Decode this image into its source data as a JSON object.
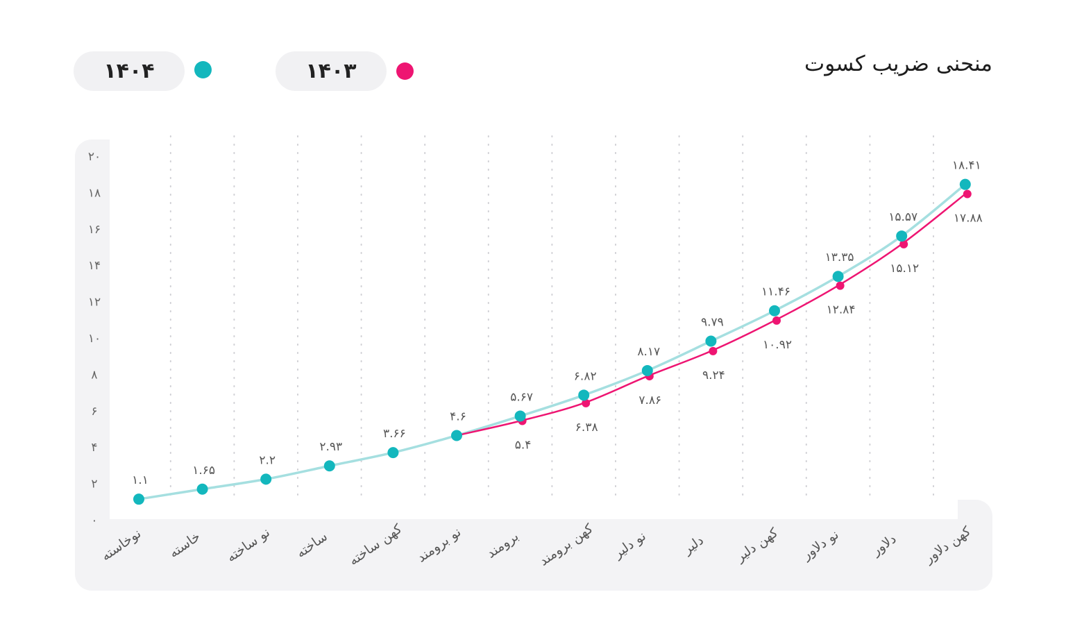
{
  "title": "منحنی ضریب کسوت",
  "colors": {
    "s1403": "#ee1572",
    "s1404": "#13b7bd",
    "line1404": "#a5dfe0"
  },
  "legend": [
    {
      "name": "۱۴۰۳",
      "color": "#ee1572"
    },
    {
      "name": "۱۴۰۴",
      "color": "#13b7bd"
    }
  ],
  "chart_data": {
    "type": "line",
    "title": "منحنی ضریب کسوت",
    "xlabel": "",
    "ylabel": "",
    "ylim": [
      0,
      20
    ],
    "grid": "vertical-dotted",
    "legend_position": "top-left",
    "categories": [
      "نوخاسته",
      "خاسته",
      "نو ساخته",
      "ساخته",
      "کهن ساخته",
      "نو برومند",
      "برومند",
      "کهن برومند",
      "نو دلیر",
      "دلیر",
      "کهن دلیر",
      "نو دلاور",
      "دلاور",
      "کهن دلاور"
    ],
    "y_ticks": [
      {
        "value": 0,
        "label": "۰"
      },
      {
        "value": 2,
        "label": "۲"
      },
      {
        "value": 4,
        "label": "۴"
      },
      {
        "value": 6,
        "label": "۶"
      },
      {
        "value": 8,
        "label": "۸"
      },
      {
        "value": 10,
        "label": "۱۰"
      },
      {
        "value": 12,
        "label": "۱۲"
      },
      {
        "value": 14,
        "label": "۱۴"
      },
      {
        "value": 16,
        "label": "۱۶"
      },
      {
        "value": 18,
        "label": "۱۸"
      },
      {
        "value": 20,
        "label": "۲۰"
      }
    ],
    "series": [
      {
        "name": "۱۴۰۴",
        "values": [
          1.1,
          1.65,
          2.2,
          2.93,
          3.66,
          4.6,
          5.67,
          6.82,
          8.17,
          9.79,
          11.46,
          13.35,
          15.57,
          18.41
        ],
        "labels": [
          "۱.۱",
          "۱.۶۵",
          "۲.۲",
          "۲.۹۳",
          "۳.۶۶",
          "۴.۶",
          "۵.۶۷",
          "۶.۸۲",
          "۸.۱۷",
          "۹.۷۹",
          "۱۱.۴۶",
          "۱۳.۳۵",
          "۱۵.۵۷",
          "۱۸.۴۱"
        ]
      },
      {
        "name": "۱۴۰۳",
        "values": [
          null,
          null,
          null,
          null,
          null,
          4.6,
          5.4,
          6.38,
          7.86,
          9.24,
          10.92,
          12.84,
          15.12,
          17.88
        ],
        "labels": [
          "",
          "",
          "",
          "",
          "",
          "",
          "۵.۴",
          "۶.۳۸",
          "۷.۸۶",
          "۹.۲۴",
          "۱۰.۹۲",
          "۱۲.۸۴",
          "۱۵.۱۲",
          "۱۷.۸۸"
        ]
      }
    ]
  }
}
